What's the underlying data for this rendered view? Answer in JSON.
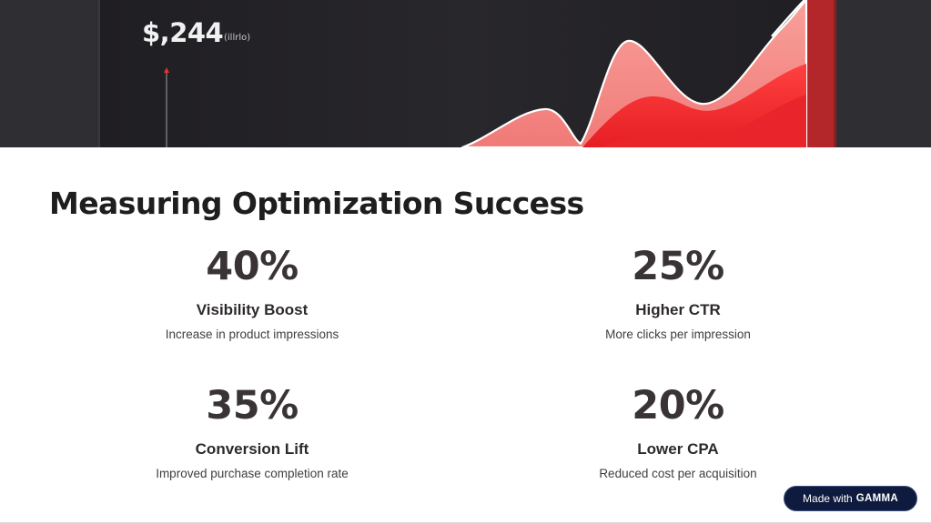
{
  "hero": {
    "value": "$,244",
    "unit": "(illrlo)"
  },
  "slide": {
    "title": "Measuring Optimization Success",
    "metrics": [
      {
        "value": "40%",
        "label": "Visibility Boost",
        "description": "Increase in product impressions"
      },
      {
        "value": "25%",
        "label": "Higher CTR",
        "description": "More clicks per impression"
      },
      {
        "value": "35%",
        "label": "Conversion Lift",
        "description": "Improved purchase completion rate"
      },
      {
        "value": "20%",
        "label": "Lower CPA",
        "description": "Reduced cost per acquisition"
      }
    ]
  },
  "badge": {
    "prefix": "Made with",
    "brand": "GAMMA"
  },
  "colors": {
    "hero_background": "#2b2a2e",
    "accent_red": "#f02e2e",
    "accent_pink": "#f38a8a",
    "text_dark": "#1e1e1e",
    "badge_background": "#0e1a3e"
  }
}
